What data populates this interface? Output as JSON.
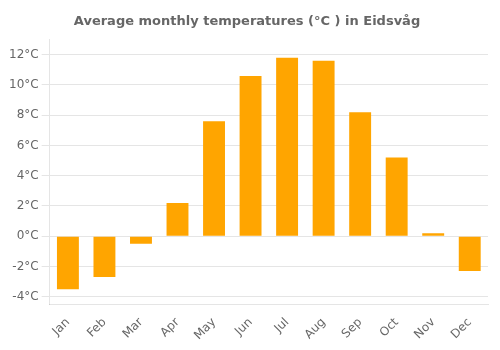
{
  "chart_data": {
    "type": "bar",
    "title": "Average monthly temperatures (°C ) in Eidsvåg",
    "categories": [
      "Jan",
      "Feb",
      "Mar",
      "Apr",
      "May",
      "Jun",
      "Jul",
      "Aug",
      "Sep",
      "Oct",
      "Nov",
      "Dec"
    ],
    "values": [
      -3.5,
      -2.7,
      -0.5,
      2.2,
      7.6,
      10.6,
      11.8,
      11.6,
      8.2,
      5.2,
      0.2,
      -2.3
    ],
    "color": "#FFA500",
    "ylim": [
      -4.5,
      13.0
    ],
    "yticks": [
      {
        "value": -4,
        "label": "-4°C"
      },
      {
        "value": -2,
        "label": "-2°C"
      },
      {
        "value": 0,
        "label": "0°C"
      },
      {
        "value": 2,
        "label": "2°C"
      },
      {
        "value": 4,
        "label": "4°C"
      },
      {
        "value": 6,
        "label": "6°C"
      },
      {
        "value": 8,
        "label": "8°C"
      },
      {
        "value": 10,
        "label": "10°C"
      },
      {
        "value": 12,
        "label": "12°C"
      }
    ],
    "grid": true
  }
}
